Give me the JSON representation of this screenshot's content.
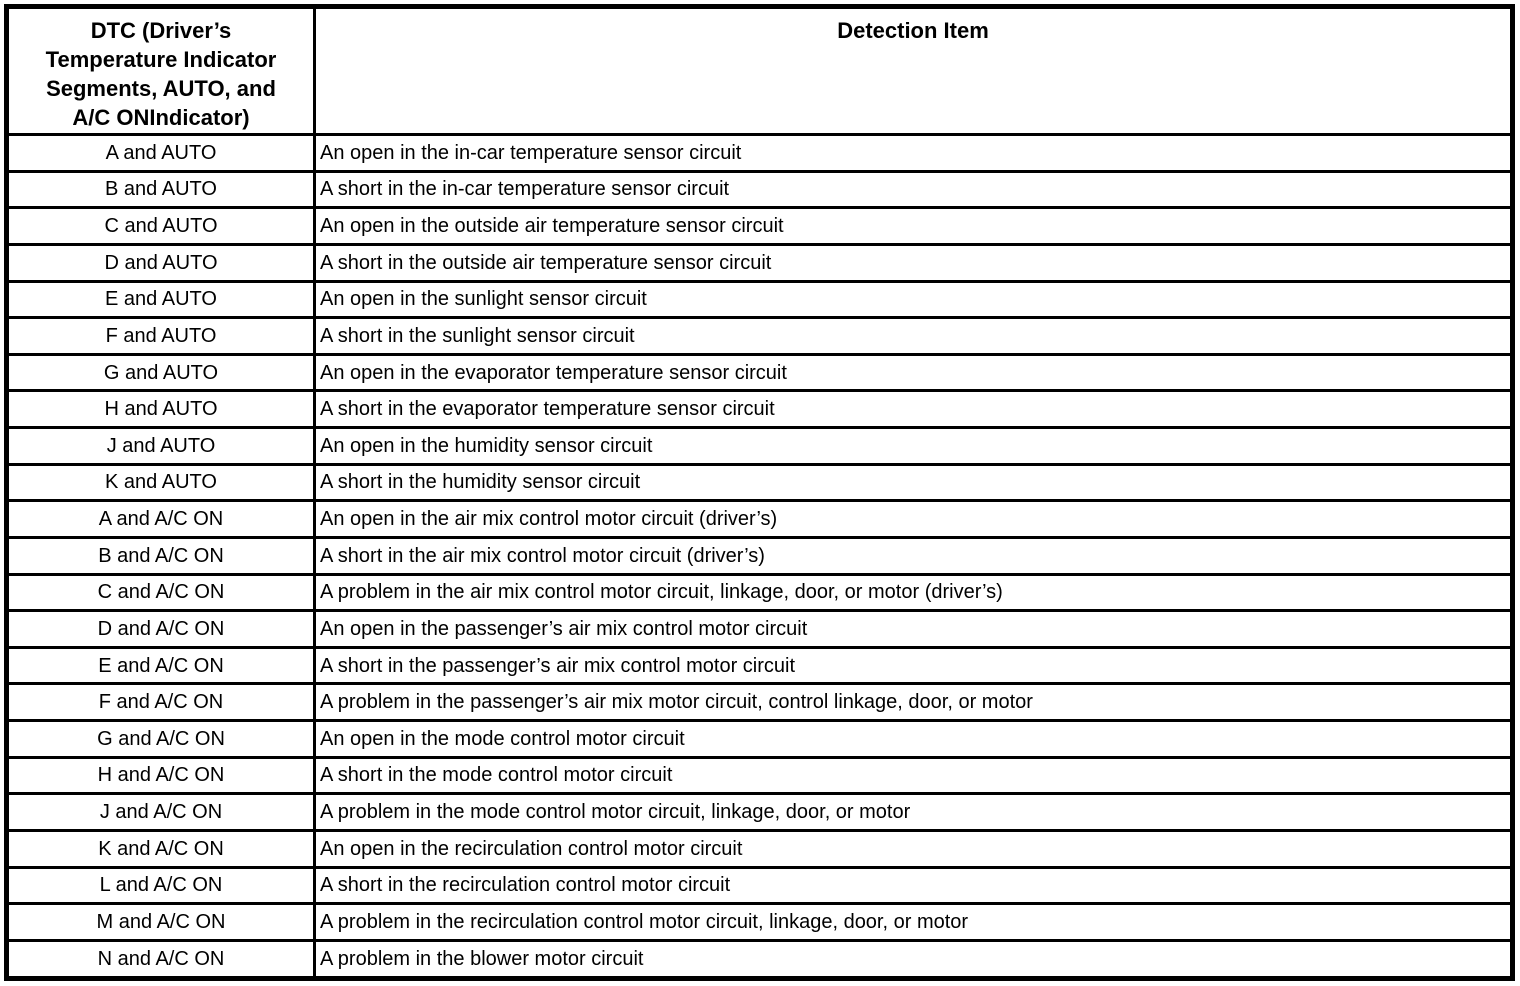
{
  "colors": {
    "text": "#000000",
    "border": "#000000",
    "background": "#ffffff"
  },
  "table": {
    "headers": {
      "dtc": "DTC (Driver’s\nTemperature Indicator\nSegments, AUTO, and\nA/C ONIndicator)",
      "detection_item": "Detection Item"
    },
    "rows": [
      {
        "dtc": "A and AUTO",
        "detection_item": "An open in the in-car temperature sensor circuit"
      },
      {
        "dtc": "B and AUTO",
        "detection_item": "A short in the in-car temperature sensor circuit"
      },
      {
        "dtc": "C and AUTO",
        "detection_item": "An open in the outside air temperature sensor circuit"
      },
      {
        "dtc": "D and AUTO",
        "detection_item": "A short in the outside air temperature sensor circuit"
      },
      {
        "dtc": "E and AUTO",
        "detection_item": "An open in the sunlight sensor circuit"
      },
      {
        "dtc": "F and AUTO",
        "detection_item": "A short in the sunlight sensor circuit"
      },
      {
        "dtc": "G and AUTO",
        "detection_item": "An open in the evaporator temperature sensor circuit"
      },
      {
        "dtc": "H and AUTO",
        "detection_item": "A short in the evaporator temperature sensor circuit"
      },
      {
        "dtc": "J and AUTO",
        "detection_item": "An open in the humidity sensor circuit"
      },
      {
        "dtc": "K and AUTO",
        "detection_item": "A short in the humidity sensor circuit"
      },
      {
        "dtc": "A and A/C ON",
        "detection_item": "An open in the air mix control motor circuit (driver’s)"
      },
      {
        "dtc": "B and A/C ON",
        "detection_item": "A short in the air mix control motor circuit (driver’s)"
      },
      {
        "dtc": "C and A/C ON",
        "detection_item": "A problem in the air mix control motor circuit, linkage, door, or motor (driver’s)"
      },
      {
        "dtc": "D and A/C ON",
        "detection_item": "An open in the passenger’s air mix control motor circuit"
      },
      {
        "dtc": "E and A/C ON",
        "detection_item": "A short in the passenger’s air mix control motor circuit"
      },
      {
        "dtc": "F and A/C ON",
        "detection_item": "A problem in the passenger’s air mix motor circuit, control linkage, door, or motor"
      },
      {
        "dtc": "G and A/C ON",
        "detection_item": "An open in the mode control motor circuit"
      },
      {
        "dtc": "H and A/C ON",
        "detection_item": "A short in the mode control motor circuit"
      },
      {
        "dtc": "J and A/C ON",
        "detection_item": "A problem in the mode control motor circuit, linkage, door, or motor"
      },
      {
        "dtc": "K and A/C ON",
        "detection_item": "An open in the recirculation control motor circuit"
      },
      {
        "dtc": "L and A/C ON",
        "detection_item": "A short in the recirculation control motor circuit"
      },
      {
        "dtc": "M and A/C ON",
        "detection_item": "A problem in the recirculation control motor circuit, linkage, door, or motor"
      },
      {
        "dtc": "N and A/C ON",
        "detection_item": "A problem in the blower motor circuit"
      }
    ]
  }
}
